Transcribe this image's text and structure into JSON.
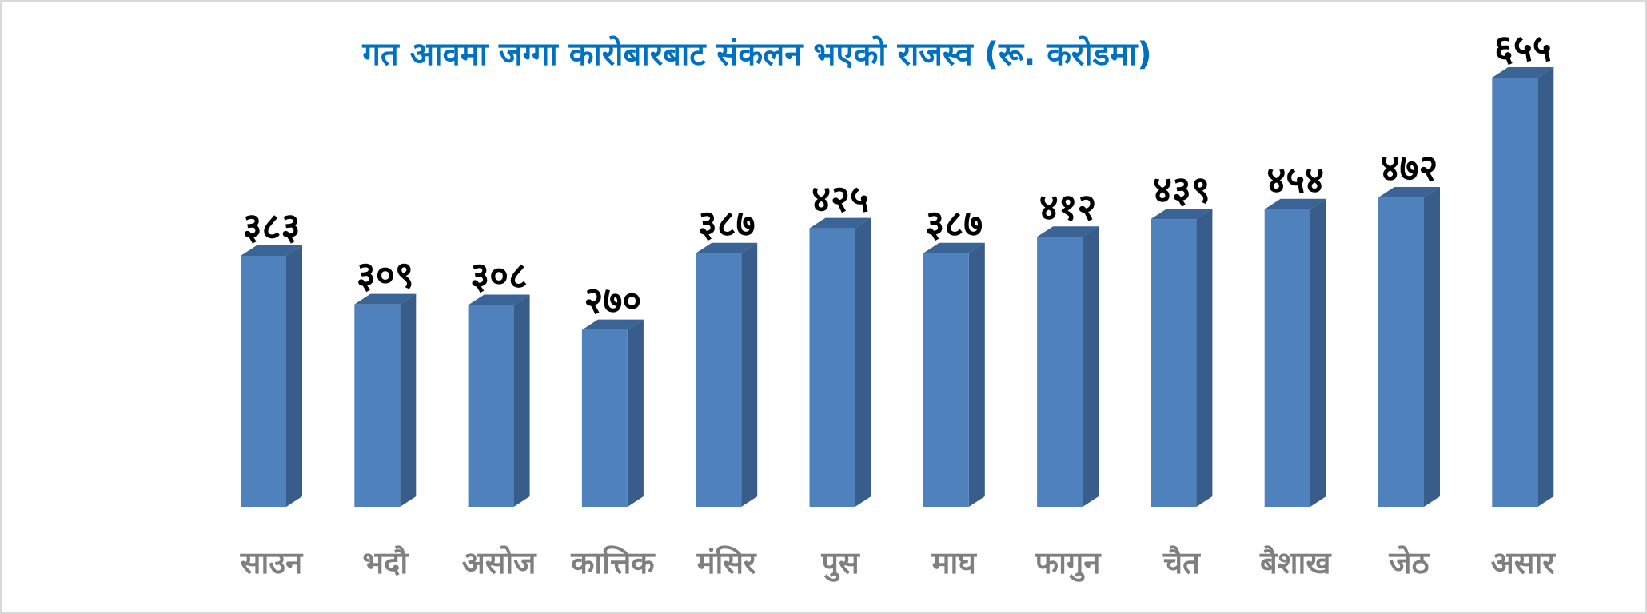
{
  "chart_data": {
    "type": "bar",
    "title": "गत आवमा जग्गा कारोबारबाट संकलन भएको राजस्व (रू. करोडमा)",
    "categories": [
      "साउन",
      "भदौ",
      "असोज",
      "कात्तिक",
      "मंसिर",
      "पुस",
      "माघ",
      "फागुन",
      "चैत",
      "बैशाख",
      "जेठ",
      "असार"
    ],
    "values": [
      383,
      309,
      308,
      270,
      387,
      425,
      387,
      412,
      439,
      454,
      472,
      655
    ],
    "data_labels": [
      "३८३",
      "३०९",
      "३०८",
      "२७०",
      "३८७",
      "४२५",
      "३८७",
      "४१२",
      "४३९",
      "४५४",
      "४७२",
      "६५५"
    ],
    "xlabel": "",
    "ylabel": "",
    "ylim": [
      0,
      655
    ],
    "grid": false,
    "legend": "none",
    "colors": {
      "bar_front": "#4f81bd",
      "bar_side": "#385d8a",
      "bar_top": "#3a6496",
      "title": "#0070c0",
      "category_text": "#7f7f7f",
      "value_text": "#000000"
    }
  }
}
